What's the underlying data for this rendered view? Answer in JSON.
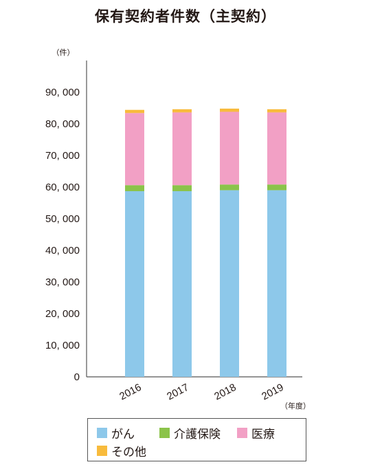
{
  "chart_data": {
    "type": "bar",
    "stacked": true,
    "title": "保有契約者件数（主契約）",
    "y_unit_label": "（件）",
    "x_unit_label": "（年度）",
    "categories": [
      "2016",
      "2017",
      "2018",
      "2019"
    ],
    "y_ticks": [
      "0",
      "10, 000",
      "20, 000",
      "30, 000",
      "40, 000",
      "50, 000",
      "60, 000",
      "70, 000",
      "80, 000",
      "90, 000"
    ],
    "ylim": [
      0,
      90000
    ],
    "grid": false,
    "legend_position": "bottom",
    "series": [
      {
        "name": "がん",
        "color": "#8DC8EA",
        "values": [
          58700,
          58700,
          59000,
          59000
        ]
      },
      {
        "name": "介護保険",
        "color": "#8BC34A",
        "values": [
          1900,
          1900,
          1800,
          1800
        ]
      },
      {
        "name": "医療",
        "color": "#F2A0C5",
        "values": [
          22800,
          23000,
          23000,
          22800
        ]
      },
      {
        "name": "その他",
        "color": "#F8BB3C",
        "values": [
          1000,
          1000,
          1000,
          1000
        ]
      }
    ]
  }
}
